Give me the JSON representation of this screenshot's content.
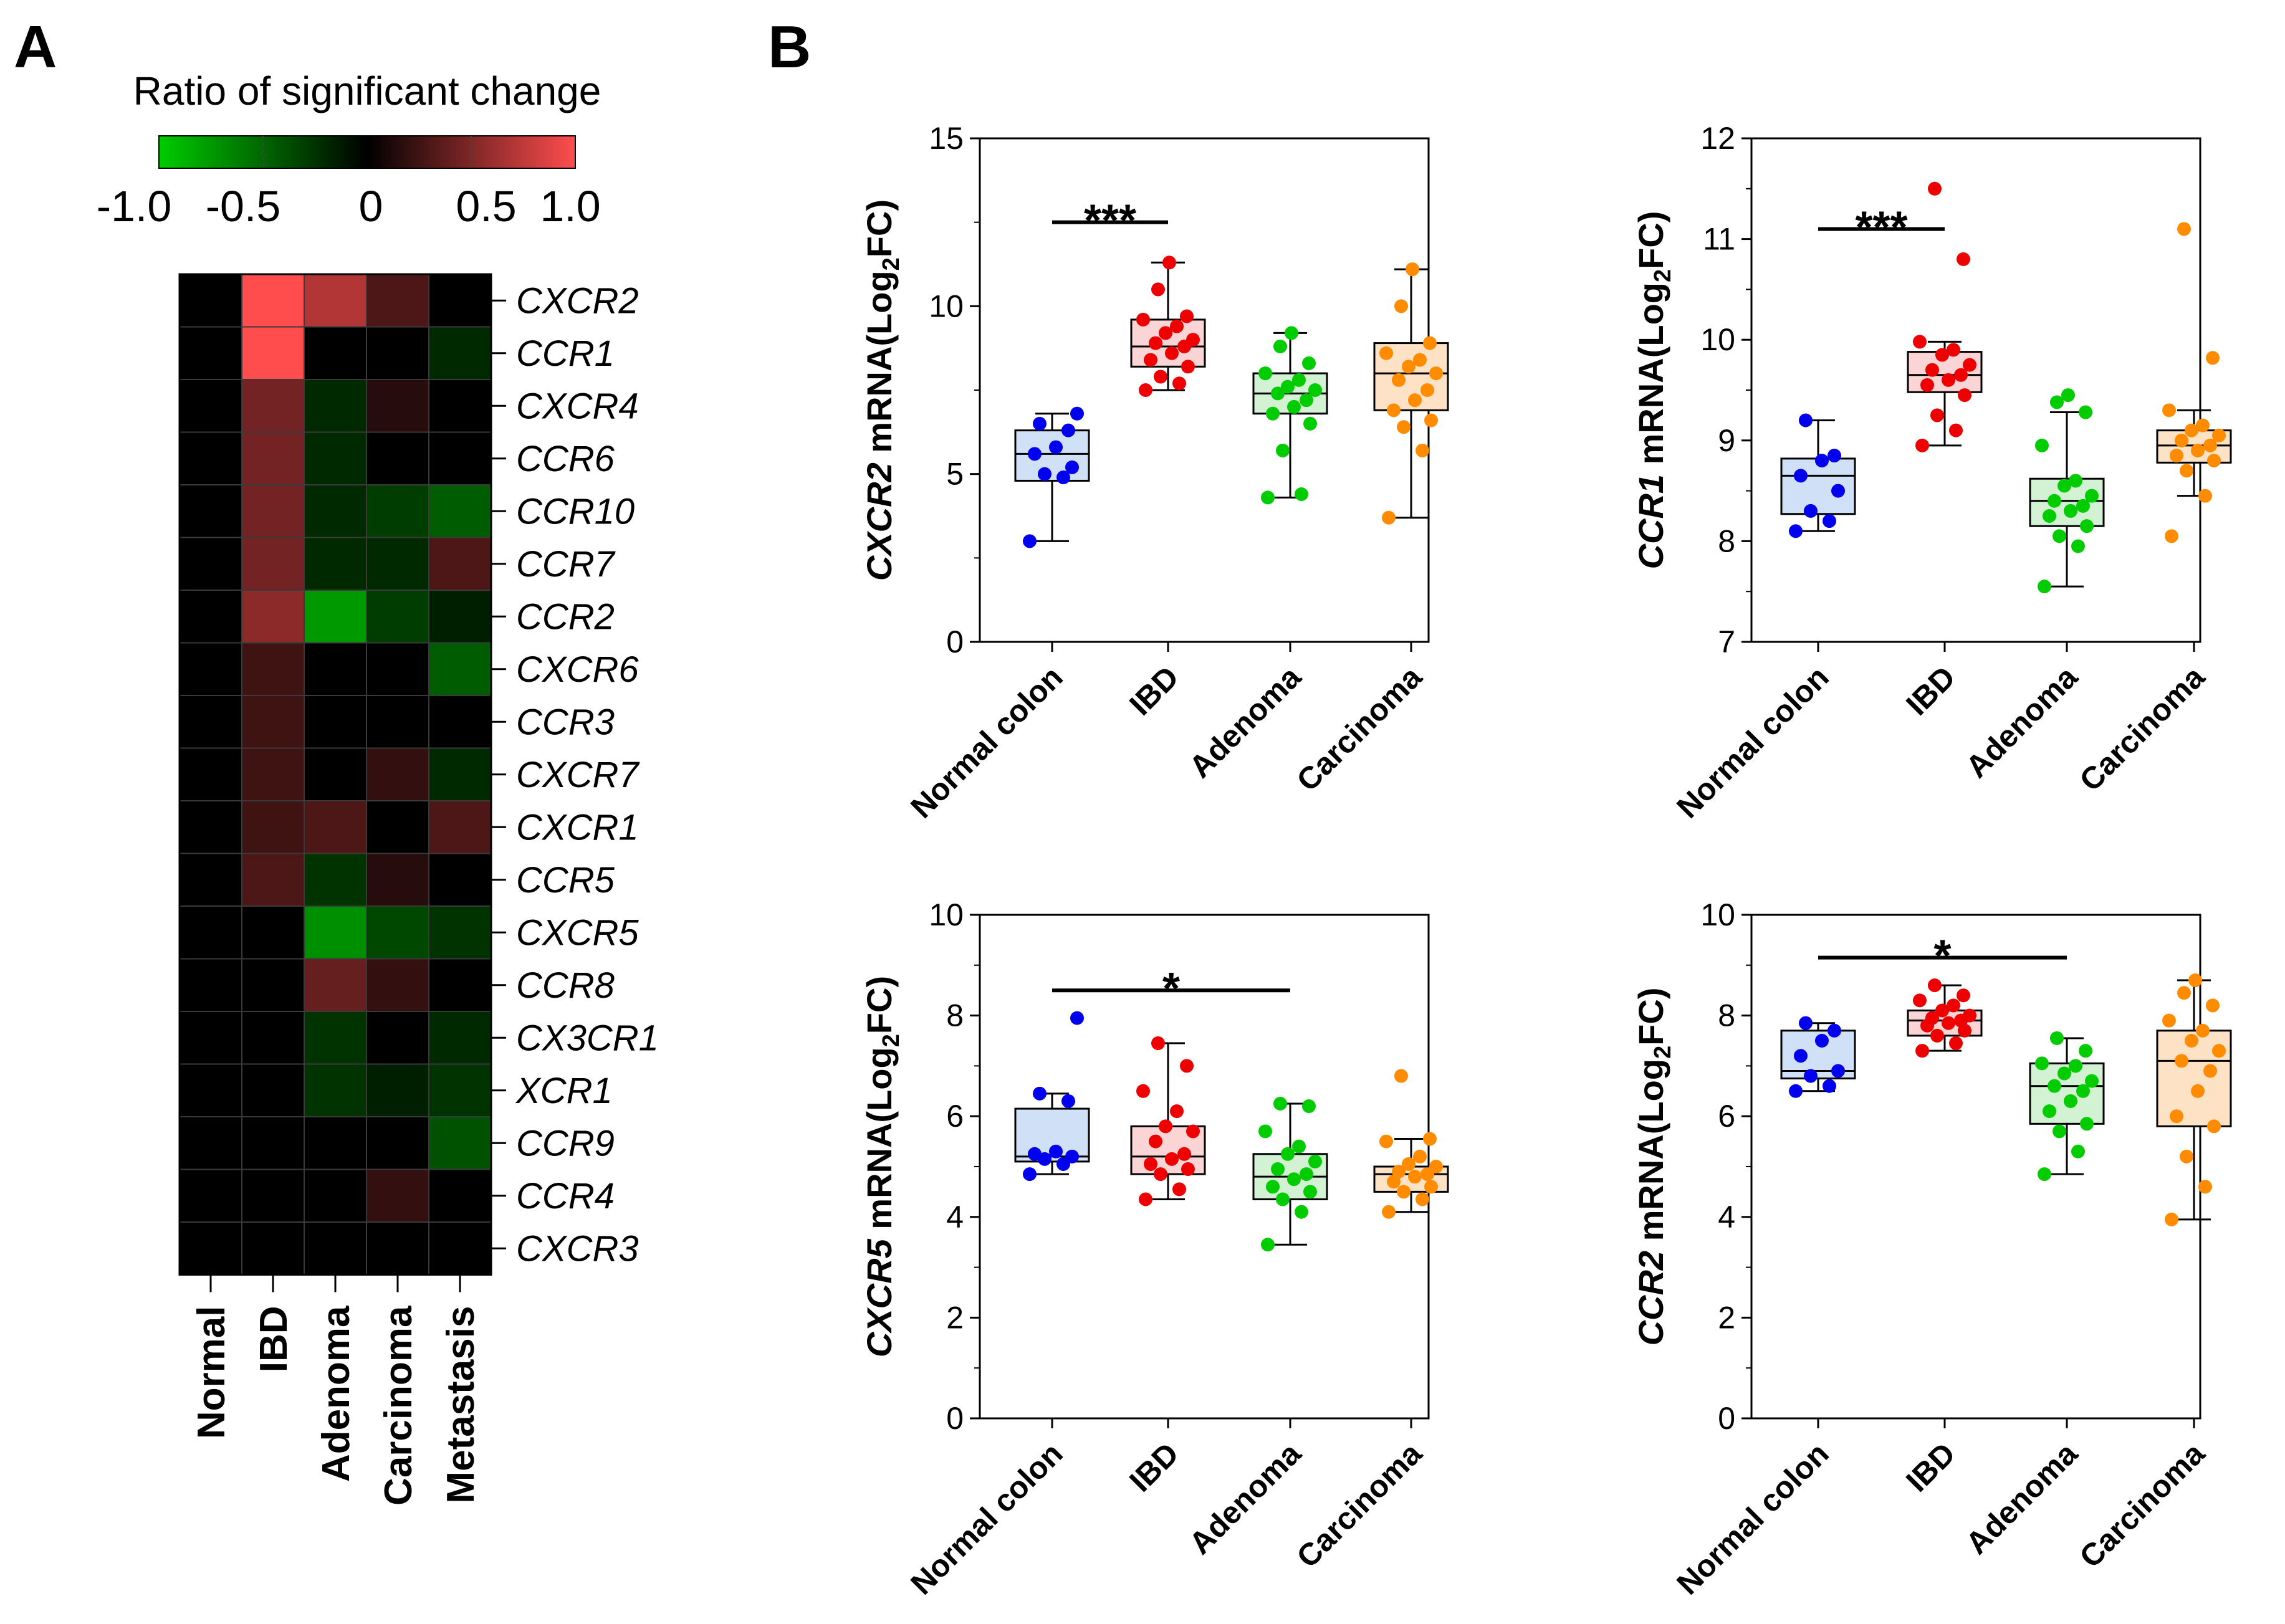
{
  "panel_a_letter": "A",
  "panel_b_letter": "B",
  "chart_data": [
    {
      "type": "heatmap",
      "colorbar": {
        "title": "Ratio of significant change",
        "range": [
          -1.0,
          1.0
        ],
        "ticks": [
          "-1.0",
          "-0.5",
          "0",
          "0.5",
          "1.0"
        ],
        "low_color": "#00cc00",
        "mid_color": "#000000",
        "high_color": "#ff4d4d"
      },
      "columns": [
        "Normal",
        "IBD",
        "Adenoma",
        "Carcinoma",
        "Metastasis"
      ],
      "rows": [
        "CXCR2",
        "CCR1",
        "CXCR4",
        "CCR6",
        "CCR10",
        "CCR7",
        "CCR2",
        "CXCR6",
        "CCR3",
        "CXCR7",
        "CXCR1",
        "CCR5",
        "CXCR5",
        "CCR8",
        "CX3CR1",
        "XCR1",
        "CCR9",
        "CCR4",
        "CXCR3"
      ],
      "values": [
        [
          0,
          1.0,
          0.7,
          0.3,
          0
        ],
        [
          0,
          1.0,
          0,
          0,
          -0.2
        ],
        [
          0,
          0.45,
          -0.2,
          0.15,
          0
        ],
        [
          0,
          0.45,
          -0.2,
          0,
          0
        ],
        [
          0,
          0.45,
          -0.2,
          -0.3,
          -0.45
        ],
        [
          0,
          0.45,
          -0.2,
          -0.2,
          0.3
        ],
        [
          0,
          0.55,
          -0.75,
          -0.3,
          -0.15
        ],
        [
          0,
          0.25,
          0,
          0,
          -0.45
        ],
        [
          0,
          0.25,
          0,
          0,
          0
        ],
        [
          0,
          0.25,
          0,
          0.2,
          -0.2
        ],
        [
          0,
          0.25,
          0.3,
          0,
          0.3
        ],
        [
          0,
          0.3,
          -0.25,
          0.15,
          0
        ],
        [
          0,
          0,
          -0.7,
          -0.35,
          -0.25
        ],
        [
          0,
          0,
          0.4,
          0.2,
          0
        ],
        [
          0,
          0,
          -0.25,
          0,
          -0.2
        ],
        [
          0,
          0,
          -0.25,
          -0.15,
          -0.25
        ],
        [
          0,
          0,
          0,
          0,
          -0.4
        ],
        [
          0,
          0,
          0,
          0.2,
          0
        ],
        [
          0,
          0,
          0,
          0,
          0
        ]
      ]
    },
    {
      "type": "scatter",
      "ylabel_gene": "CXCR2",
      "ylabel_rest": " mRNA(Log",
      "ylabel_sub": "2",
      "ylabel_end": "FC)",
      "ylim": [
        0,
        15
      ],
      "yticks": [
        "0",
        "5",
        "10",
        "15"
      ],
      "categories": [
        "Normal colon",
        "IBD",
        "Adenoma",
        "Carcinoma"
      ],
      "colors": [
        "#0000ee",
        "#ee0000",
        "#00cc00",
        "#ff8c00"
      ],
      "box_fills": [
        "#cfe0f7",
        "#fbd5d5",
        "#d3f2d3",
        "#fde2c6"
      ],
      "boxes": [
        {
          "min": 3.0,
          "q1": 4.8,
          "median": 5.6,
          "q3": 6.3,
          "max": 6.8
        },
        {
          "min": 7.5,
          "q1": 8.2,
          "median": 8.8,
          "q3": 9.6,
          "max": 11.3
        },
        {
          "min": 4.3,
          "q1": 6.8,
          "median": 7.4,
          "q3": 8.0,
          "max": 9.2
        },
        {
          "min": 3.7,
          "q1": 6.9,
          "median": 8.0,
          "q3": 8.9,
          "max": 11.1
        }
      ],
      "points": [
        [
          3.0,
          4.9,
          5.0,
          5.2,
          5.6,
          5.8,
          6.3,
          6.5,
          6.8
        ],
        [
          7.5,
          7.7,
          7.9,
          8.2,
          8.4,
          8.6,
          8.8,
          8.9,
          9.0,
          9.2,
          9.4,
          9.6,
          9.7,
          10.5,
          11.3
        ],
        [
          4.3,
          4.4,
          5.7,
          6.5,
          6.8,
          7.0,
          7.2,
          7.4,
          7.5,
          7.6,
          7.8,
          8.0,
          8.3,
          8.8,
          9.2
        ],
        [
          3.7,
          5.7,
          6.4,
          6.6,
          6.9,
          7.2,
          7.5,
          7.8,
          8.0,
          8.2,
          8.4,
          8.6,
          8.9,
          10.0,
          11.1
        ]
      ],
      "significance": {
        "from": 0,
        "to": 1,
        "y": 12.5,
        "label": "***"
      }
    },
    {
      "type": "scatter",
      "ylabel_gene": "CCR1",
      "ylabel_rest": " mRNA(Log",
      "ylabel_sub": "2",
      "ylabel_end": "FC)",
      "ylim": [
        7,
        12
      ],
      "yticks": [
        "7",
        "8",
        "9",
        "10",
        "11",
        "12"
      ],
      "categories": [
        "Normal colon",
        "IBD",
        "Adenoma",
        "Carcinoma"
      ],
      "colors": [
        "#0000ee",
        "#ee0000",
        "#00cc00",
        "#ff8c00"
      ],
      "box_fills": [
        "#cfe0f7",
        "#fbd5d5",
        "#d3f2d3",
        "#fde2c6"
      ],
      "boxes": [
        {
          "min": 8.1,
          "q1": 8.27,
          "median": 8.65,
          "q3": 8.82,
          "max": 9.2
        },
        {
          "min": 8.95,
          "q1": 9.48,
          "median": 9.65,
          "q3": 9.88,
          "max": 9.98
        },
        {
          "min": 7.55,
          "q1": 8.15,
          "median": 8.4,
          "q3": 8.62,
          "max": 9.28
        },
        {
          "min": 8.45,
          "q1": 8.78,
          "median": 8.95,
          "q3": 9.1,
          "max": 9.3
        }
      ],
      "points": [
        [
          8.1,
          8.2,
          8.3,
          8.5,
          8.65,
          8.8,
          8.85,
          9.2
        ],
        [
          8.95,
          9.1,
          9.25,
          9.45,
          9.55,
          9.6,
          9.65,
          9.7,
          9.75,
          9.85,
          9.9,
          9.98,
          10.8,
          11.5
        ],
        [
          7.55,
          7.95,
          8.05,
          8.15,
          8.25,
          8.3,
          8.35,
          8.4,
          8.45,
          8.55,
          8.6,
          8.95,
          9.28,
          9.38,
          9.45
        ],
        [
          8.05,
          8.45,
          8.7,
          8.8,
          8.85,
          8.9,
          8.95,
          9.0,
          9.05,
          9.1,
          9.15,
          9.3,
          9.82,
          11.1
        ]
      ],
      "significance": {
        "from": 0,
        "to": 1,
        "y": 11.1,
        "label": "***"
      }
    },
    {
      "type": "scatter",
      "ylabel_gene": "CXCR5",
      "ylabel_rest": " mRNA(Log",
      "ylabel_sub": "2",
      "ylabel_end": "FC)",
      "ylim": [
        0,
        10
      ],
      "yticks": [
        "0",
        "2",
        "4",
        "6",
        "8",
        "10"
      ],
      "categories": [
        "Normal colon",
        "IBD",
        "Adenoma",
        "Carcinoma"
      ],
      "colors": [
        "#0000ee",
        "#ee0000",
        "#00cc00",
        "#ff8c00"
      ],
      "box_fills": [
        "#cfe0f7",
        "#fbd5d5",
        "#d3f2d3",
        "#fde2c6"
      ],
      "boxes": [
        {
          "min": 4.85,
          "q1": 5.1,
          "median": 5.2,
          "q3": 6.15,
          "max": 6.45
        },
        {
          "min": 4.35,
          "q1": 4.85,
          "median": 5.2,
          "q3": 5.8,
          "max": 7.45
        },
        {
          "min": 3.45,
          "q1": 4.35,
          "median": 4.8,
          "q3": 5.25,
          "max": 6.25
        },
        {
          "min": 4.1,
          "q1": 4.5,
          "median": 4.85,
          "q3": 5.0,
          "max": 5.55
        }
      ],
      "points": [
        [
          4.85,
          5.05,
          5.15,
          5.2,
          5.25,
          5.3,
          6.3,
          6.45,
          7.95
        ],
        [
          4.35,
          4.55,
          4.85,
          4.95,
          5.05,
          5.15,
          5.25,
          5.5,
          5.7,
          5.8,
          6.1,
          6.5,
          7.0,
          7.45
        ],
        [
          3.45,
          4.1,
          4.35,
          4.5,
          4.6,
          4.75,
          4.85,
          4.95,
          5.1,
          5.25,
          5.4,
          5.7,
          6.2,
          6.25
        ],
        [
          4.1,
          4.35,
          4.5,
          4.6,
          4.7,
          4.8,
          4.85,
          4.9,
          5.0,
          5.05,
          5.2,
          5.5,
          5.55,
          6.8
        ]
      ],
      "significance": {
        "from": 0,
        "to": 2,
        "y": 8.5,
        "label": "*"
      }
    },
    {
      "type": "scatter",
      "ylabel_gene": "CCR2",
      "ylabel_rest": " mRNA(Log",
      "ylabel_sub": "2",
      "ylabel_end": "FC)",
      "ylim": [
        0,
        10
      ],
      "yticks": [
        "0",
        "2",
        "4",
        "6",
        "8",
        "10"
      ],
      "categories": [
        "Normal colon",
        "IBD",
        "Adenoma",
        "Carcinoma"
      ],
      "colors": [
        "#0000ee",
        "#ee0000",
        "#00cc00",
        "#ff8c00"
      ],
      "box_fills": [
        "#cfe0f7",
        "#fbd5d5",
        "#d3f2d3",
        "#fde2c6"
      ],
      "boxes": [
        {
          "min": 6.5,
          "q1": 6.75,
          "median": 6.9,
          "q3": 7.7,
          "max": 7.85
        },
        {
          "min": 7.3,
          "q1": 7.6,
          "median": 7.9,
          "q3": 8.1,
          "max": 8.6
        },
        {
          "min": 4.85,
          "q1": 5.85,
          "median": 6.6,
          "q3": 7.05,
          "max": 7.55
        },
        {
          "min": 3.95,
          "q1": 5.8,
          "median": 7.1,
          "q3": 7.7,
          "max": 8.7
        }
      ],
      "points": [
        [
          6.5,
          6.6,
          6.8,
          6.9,
          7.2,
          7.5,
          7.7,
          7.85
        ],
        [
          7.3,
          7.45,
          7.6,
          7.7,
          7.8,
          7.85,
          7.9,
          7.95,
          8.0,
          8.1,
          8.2,
          8.3,
          8.4,
          8.6
        ],
        [
          4.85,
          5.3,
          5.7,
          5.85,
          6.1,
          6.3,
          6.5,
          6.6,
          6.7,
          6.85,
          7.0,
          7.05,
          7.3,
          7.55
        ],
        [
          3.95,
          4.6,
          5.2,
          5.8,
          6.0,
          6.5,
          6.9,
          7.1,
          7.3,
          7.5,
          7.7,
          7.9,
          8.2,
          8.45,
          8.7
        ]
      ],
      "significance": {
        "from": 0,
        "to": 2,
        "y": 9.15,
        "label": "*"
      }
    }
  ]
}
